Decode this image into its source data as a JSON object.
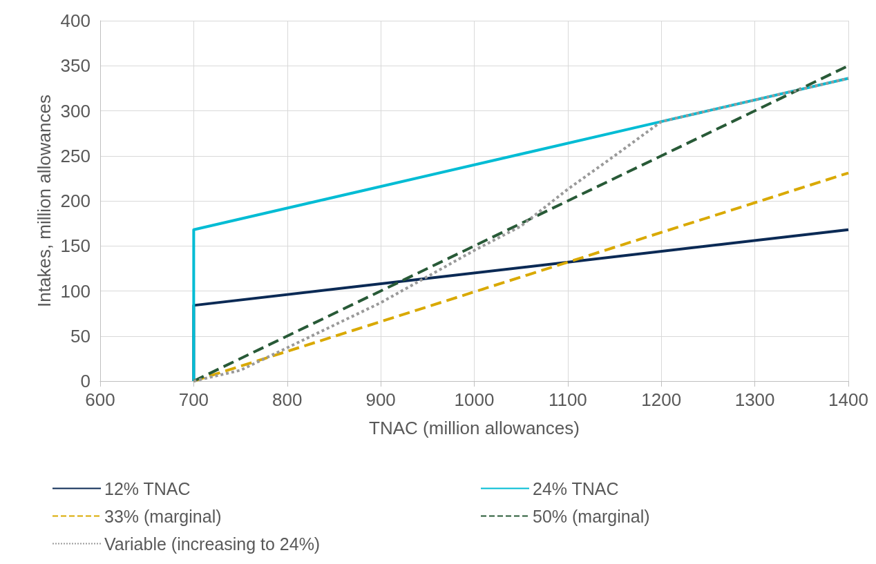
{
  "chart_data": {
    "type": "line",
    "xlabel": "TNAC (million allowances)",
    "ylabel": "Intakes, million allowances",
    "xlim": [
      600,
      1400
    ],
    "xticks": [
      600,
      700,
      800,
      900,
      1000,
      1100,
      1200,
      1300,
      1400
    ],
    "ylim": [
      0,
      400
    ],
    "yticks": [
      0,
      50,
      100,
      150,
      200,
      250,
      300,
      350,
      400
    ],
    "grid": true,
    "legend": "bottom",
    "marker": "none",
    "series": [
      {
        "name": "12% TNAC",
        "color": "#0b2a55",
        "line_style": "solid",
        "x": [
          700,
          700,
          1400
        ],
        "values": [
          0,
          84,
          168
        ]
      },
      {
        "name": "24% TNAC",
        "color": "#00bcd4",
        "line_style": "solid",
        "x": [
          700,
          700,
          1200,
          1400
        ],
        "values": [
          0,
          168,
          288,
          336
        ]
      },
      {
        "name": "33% (marginal)",
        "color": "#d9a900",
        "line_style": "dashed",
        "x": [
          700,
          1400
        ],
        "values": [
          0,
          231
        ]
      },
      {
        "name": "50% (marginal)",
        "color": "#285a37",
        "line_style": "dashed",
        "x": [
          700,
          1400
        ],
        "values": [
          0,
          350
        ]
      },
      {
        "name": "Variable (increasing to 24%)",
        "color": "#9a9a9a",
        "line_style": "dotted",
        "x": [
          700,
          750,
          800,
          900,
          1000,
          1050,
          1100,
          1150,
          1200,
          1300,
          1400
        ],
        "values": [
          0,
          12,
          37,
          87,
          145,
          172,
          213,
          250,
          288,
          312,
          336
        ]
      }
    ]
  }
}
